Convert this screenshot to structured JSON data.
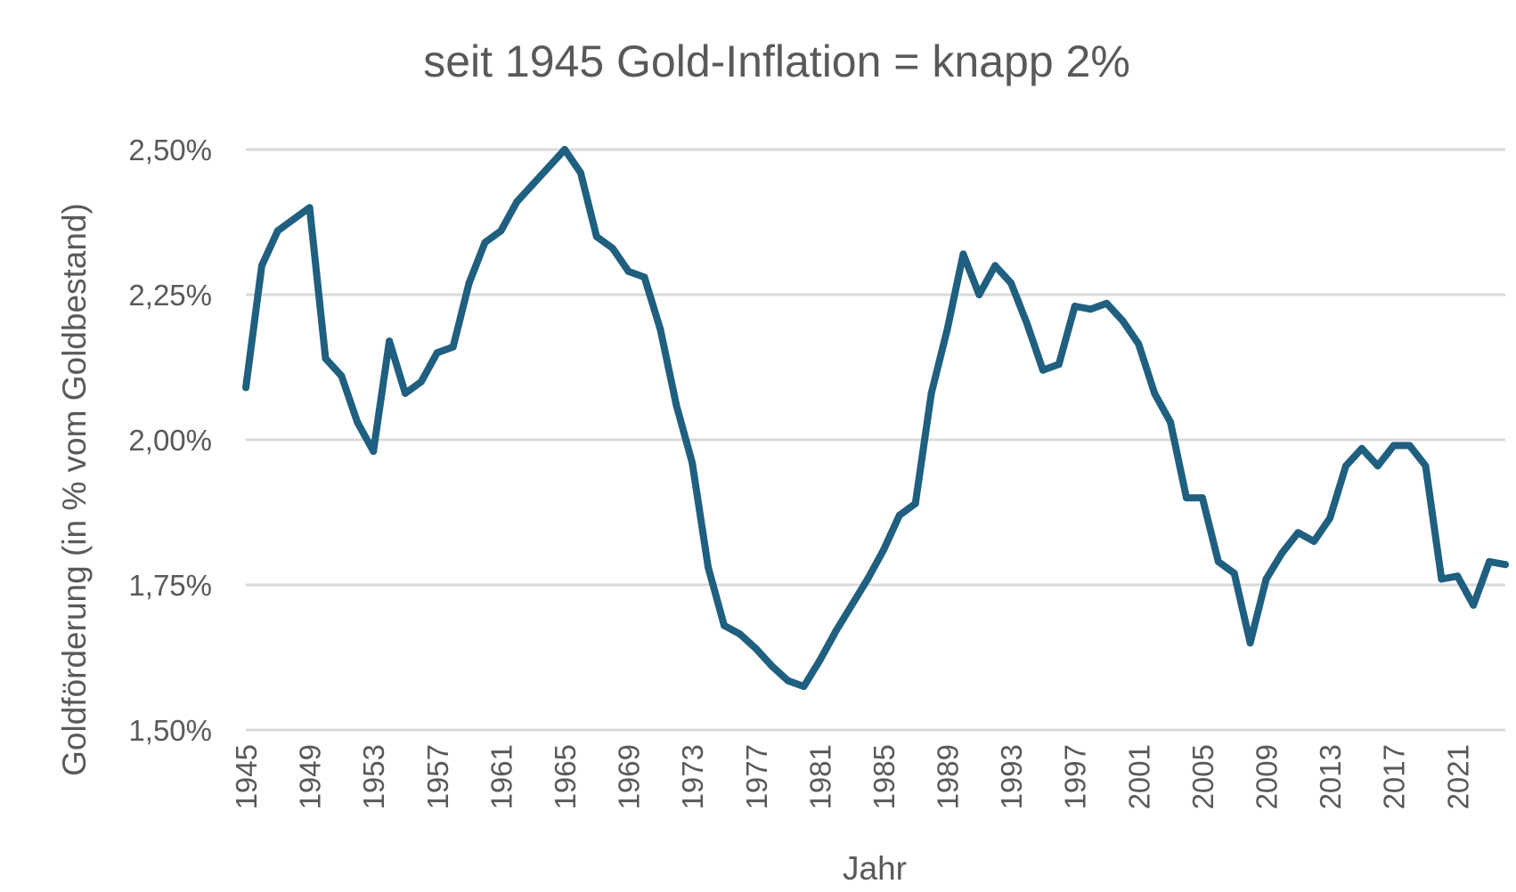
{
  "chart_data": {
    "type": "line",
    "title": "seit 1945 Gold-Inflation = knapp 2%",
    "xlabel": "Jahr",
    "ylabel": "Goldförderung (in % vom Goldbestand)",
    "ylim": [
      1.5,
      2.5
    ],
    "xlim": [
      1945,
      2024
    ],
    "yticks": [
      {
        "value": 1.5,
        "label": "1,50%"
      },
      {
        "value": 1.75,
        "label": "1,75%"
      },
      {
        "value": 2.0,
        "label": "2,00%"
      },
      {
        "value": 2.25,
        "label": "2,25%"
      },
      {
        "value": 2.5,
        "label": "2,50%"
      }
    ],
    "xticks": [
      1945,
      1949,
      1953,
      1957,
      1961,
      1965,
      1969,
      1973,
      1977,
      1981,
      1985,
      1989,
      1993,
      1997,
      2001,
      2005,
      2009,
      2013,
      2017,
      2021
    ],
    "grid": true,
    "legend": "none",
    "series": [
      {
        "color": "#1f5f7f",
        "x": [
          1945,
          1946,
          1947,
          1948,
          1949,
          1950,
          1951,
          1952,
          1953,
          1954,
          1955,
          1956,
          1957,
          1958,
          1959,
          1960,
          1961,
          1962,
          1963,
          1964,
          1965,
          1966,
          1967,
          1968,
          1969,
          1970,
          1971,
          1972,
          1973,
          1974,
          1975,
          1976,
          1977,
          1978,
          1979,
          1980,
          1981,
          1982,
          1983,
          1984,
          1985,
          1986,
          1987,
          1988,
          1989,
          1990,
          1991,
          1992,
          1993,
          1994,
          1995,
          1996,
          1997,
          1998,
          1999,
          2000,
          2001,
          2002,
          2003,
          2004,
          2005,
          2006,
          2007,
          2008,
          2009,
          2010,
          2011,
          2012,
          2013,
          2014,
          2015,
          2016,
          2017,
          2018,
          2019,
          2020,
          2021,
          2022,
          2023,
          2024
        ],
        "y": [
          2.09,
          2.3,
          2.36,
          2.38,
          2.4,
          2.14,
          2.11,
          2.03,
          1.98,
          2.17,
          2.08,
          2.1,
          2.15,
          2.16,
          2.27,
          2.34,
          2.36,
          2.41,
          2.44,
          2.47,
          2.5,
          2.46,
          2.35,
          2.33,
          2.29,
          2.28,
          2.19,
          2.06,
          1.96,
          1.78,
          1.68,
          1.665,
          1.64,
          1.61,
          1.585,
          1.575,
          1.62,
          1.67,
          1.715,
          1.76,
          1.81,
          1.87,
          1.89,
          2.08,
          2.19,
          2.32,
          2.25,
          2.3,
          2.27,
          2.2,
          2.12,
          2.13,
          2.23,
          2.225,
          2.235,
          2.205,
          2.165,
          2.08,
          2.03,
          1.9,
          1.9,
          1.79,
          1.77,
          1.65,
          1.76,
          1.805,
          1.84,
          1.825,
          1.865,
          1.955,
          1.985,
          1.955,
          1.99,
          1.99,
          1.955,
          1.76,
          1.765,
          1.715,
          1.79,
          1.785
        ]
      }
    ]
  }
}
